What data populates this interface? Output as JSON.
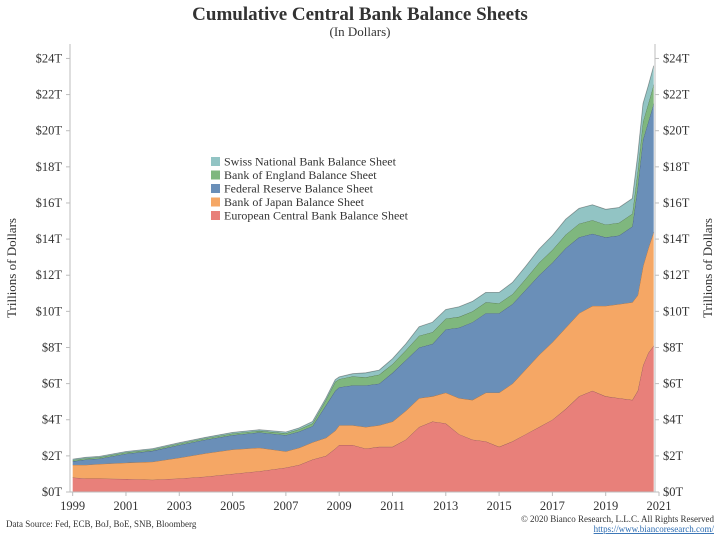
{
  "chart_data": {
    "type": "area",
    "stacked": true,
    "title": "Cumulative Central Bank Balance Sheets",
    "subtitle": "(In Dollars)",
    "ylabel": "Trillions of Dollars",
    "xlabel": "",
    "x_range": [
      1998.9,
      2020.85
    ],
    "ylim": [
      0,
      24.8
    ],
    "y_ticks": [
      0,
      2,
      4,
      6,
      8,
      10,
      12,
      14,
      16,
      18,
      20,
      22,
      24
    ],
    "y_tick_labels": [
      "$0T",
      "$2T",
      "$4T",
      "$6T",
      "$8T",
      "$10T",
      "$12T",
      "$14T",
      "$16T",
      "$18T",
      "$20T",
      "$22T",
      "$24T"
    ],
    "x_ticks": [
      1999,
      2001,
      2003,
      2005,
      2007,
      2009,
      2011,
      2013,
      2015,
      2017,
      2019,
      2021
    ],
    "x_tick_labels": [
      "1999",
      "2001",
      "2003",
      "2005",
      "2007",
      "2009",
      "2011",
      "2013",
      "2015",
      "2017",
      "2019",
      "2021"
    ],
    "grid": false,
    "legend_position": "center-left",
    "x": [
      1999,
      1999.5,
      2000,
      2001,
      2002,
      2003,
      2004,
      2005,
      2006,
      2007,
      2007.5,
      2008,
      2008.5,
      2008.85,
      2009,
      2009.5,
      2010,
      2010.5,
      2011,
      2011.5,
      2012,
      2012.5,
      2013,
      2013.5,
      2014,
      2014.5,
      2015,
      2015.5,
      2016,
      2016.5,
      2017,
      2017.5,
      2018,
      2018.5,
      2019,
      2019.5,
      2020,
      2020.2,
      2020.4,
      2020.6,
      2020.8
    ],
    "series": [
      {
        "name": "European Central Bank Balance Sheet",
        "color": "#e8807a",
        "values": [
          0.8,
          0.75,
          0.75,
          0.72,
          0.68,
          0.75,
          0.85,
          1.0,
          1.15,
          1.35,
          1.5,
          1.8,
          2.0,
          2.4,
          2.6,
          2.6,
          2.4,
          2.5,
          2.5,
          2.9,
          3.6,
          3.9,
          3.8,
          3.2,
          2.9,
          2.8,
          2.5,
          2.8,
          3.2,
          3.6,
          4.0,
          4.6,
          5.3,
          5.6,
          5.3,
          5.2,
          5.1,
          5.6,
          7.0,
          7.7,
          8.1
        ]
      },
      {
        "name": "Bank of Japan Balance Sheet",
        "color": "#f5a765",
        "values": [
          0.7,
          0.75,
          0.8,
          0.9,
          1.0,
          1.15,
          1.3,
          1.35,
          1.3,
          0.9,
          0.95,
          0.95,
          1.0,
          1.0,
          1.1,
          1.1,
          1.2,
          1.2,
          1.4,
          1.6,
          1.6,
          1.4,
          1.7,
          2.0,
          2.2,
          2.7,
          3.0,
          3.2,
          3.6,
          4.0,
          4.3,
          4.5,
          4.6,
          4.7,
          5.0,
          5.2,
          5.4,
          5.3,
          5.5,
          5.8,
          6.3
        ]
      },
      {
        "name": "Federal Reserve Balance Sheet",
        "color": "#6a8fb8",
        "values": [
          0.2,
          0.3,
          0.3,
          0.5,
          0.6,
          0.7,
          0.75,
          0.8,
          0.85,
          0.9,
          0.9,
          0.9,
          1.8,
          2.2,
          2.1,
          2.2,
          2.3,
          2.3,
          2.7,
          2.8,
          2.8,
          2.9,
          3.5,
          3.9,
          4.3,
          4.4,
          4.4,
          4.4,
          4.4,
          4.4,
          4.4,
          4.4,
          4.2,
          4.0,
          3.8,
          3.8,
          4.2,
          6.0,
          7.0,
          7.0,
          7.1
        ]
      },
      {
        "name": "Bank of England Balance Sheet",
        "color": "#7fb77e",
        "values": [
          0.07,
          0.07,
          0.07,
          0.07,
          0.07,
          0.08,
          0.08,
          0.09,
          0.09,
          0.1,
          0.12,
          0.15,
          0.3,
          0.5,
          0.45,
          0.5,
          0.45,
          0.5,
          0.48,
          0.55,
          0.65,
          0.65,
          0.6,
          0.6,
          0.6,
          0.6,
          0.55,
          0.55,
          0.6,
          0.7,
          0.7,
          0.75,
          0.75,
          0.75,
          0.7,
          0.7,
          0.7,
          0.85,
          1.0,
          1.0,
          1.05
        ]
      },
      {
        "name": "Swiss National Bank Balance Sheet",
        "color": "#92c4c4",
        "values": [
          0.05,
          0.05,
          0.05,
          0.05,
          0.05,
          0.05,
          0.05,
          0.06,
          0.06,
          0.07,
          0.08,
          0.1,
          0.1,
          0.12,
          0.12,
          0.15,
          0.25,
          0.25,
          0.3,
          0.35,
          0.5,
          0.55,
          0.5,
          0.55,
          0.55,
          0.55,
          0.6,
          0.65,
          0.7,
          0.75,
          0.8,
          0.85,
          0.85,
          0.85,
          0.85,
          0.85,
          0.85,
          0.9,
          1.0,
          1.0,
          1.05
        ]
      }
    ]
  },
  "footer": {
    "source": "Data Source: Fed, ECB, BoJ, BoE, SNB, Bloomberg",
    "copyright": "© 2020 Bianco Research, L.L.C. All Rights Reserved",
    "url": "https://www.biancoresearch.com/"
  },
  "colors": {
    "axis": "#bdbdbd",
    "text": "#333333",
    "link": "#2a6ab0"
  }
}
